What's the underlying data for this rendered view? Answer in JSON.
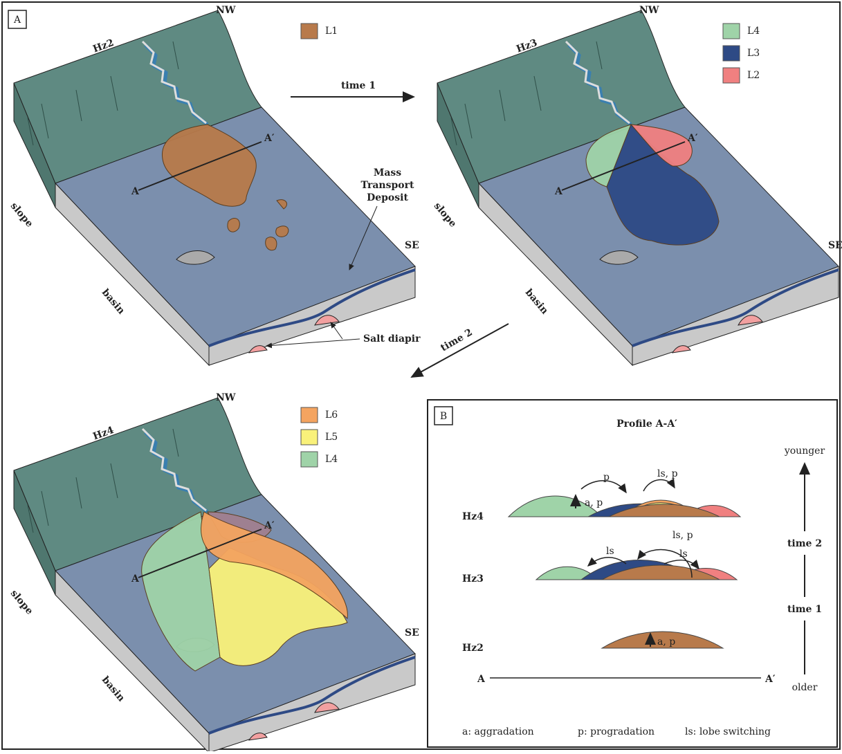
{
  "panel_a": {
    "label": "A",
    "blocks": [
      {
        "horizon": "Hz2",
        "nw": "NW",
        "se": "SE",
        "slope": "slope",
        "basin": "basin",
        "section_start": "A",
        "section_end": "A′",
        "legend": [
          {
            "label": "L1",
            "color": "#b87a4b"
          }
        ]
      },
      {
        "horizon": "Hz3",
        "nw": "NW",
        "se": "SE",
        "slope": "slope",
        "basin": "basin",
        "section_start": "A",
        "section_end": "A′",
        "legend": [
          {
            "label": "L4",
            "color": "#9fd3a8"
          },
          {
            "label": "L3",
            "color": "#2e4a85"
          },
          {
            "label": "L2",
            "color": "#f08080"
          }
        ]
      },
      {
        "horizon": "Hz4",
        "nw": "NW",
        "se": "SE",
        "slope": "slope",
        "basin": "basin",
        "section_start": "A",
        "section_end": "A′",
        "legend": [
          {
            "label": "L6",
            "color": "#f4a460"
          },
          {
            "label": "L5",
            "color": "#f9f17a"
          },
          {
            "label": "L4",
            "color": "#9fd3a8"
          }
        ]
      }
    ],
    "arrows": [
      "time 1",
      "time 2"
    ],
    "mass_transport_deposit": [
      "Mass",
      "Transport",
      "Deposit"
    ],
    "salt_diapir": "Salt diapir"
  },
  "panel_b": {
    "label": "B",
    "title": "Profile A-A′",
    "rows": [
      {
        "horizon": "Hz4",
        "processes": [
          "p",
          "ls, p",
          "a, p"
        ]
      },
      {
        "horizon": "Hz3",
        "processes": [
          "ls",
          "ls, p",
          "ls"
        ]
      },
      {
        "horizon": "Hz2",
        "processes": [
          "a, p"
        ]
      }
    ],
    "axis": {
      "top": "younger",
      "bottom": "older",
      "steps": [
        "time 2",
        "time 1"
      ]
    },
    "section_start": "A",
    "section_end": "A′",
    "key": [
      "a: aggradation",
      "p: progradation",
      "ls: lobe switching"
    ]
  }
}
